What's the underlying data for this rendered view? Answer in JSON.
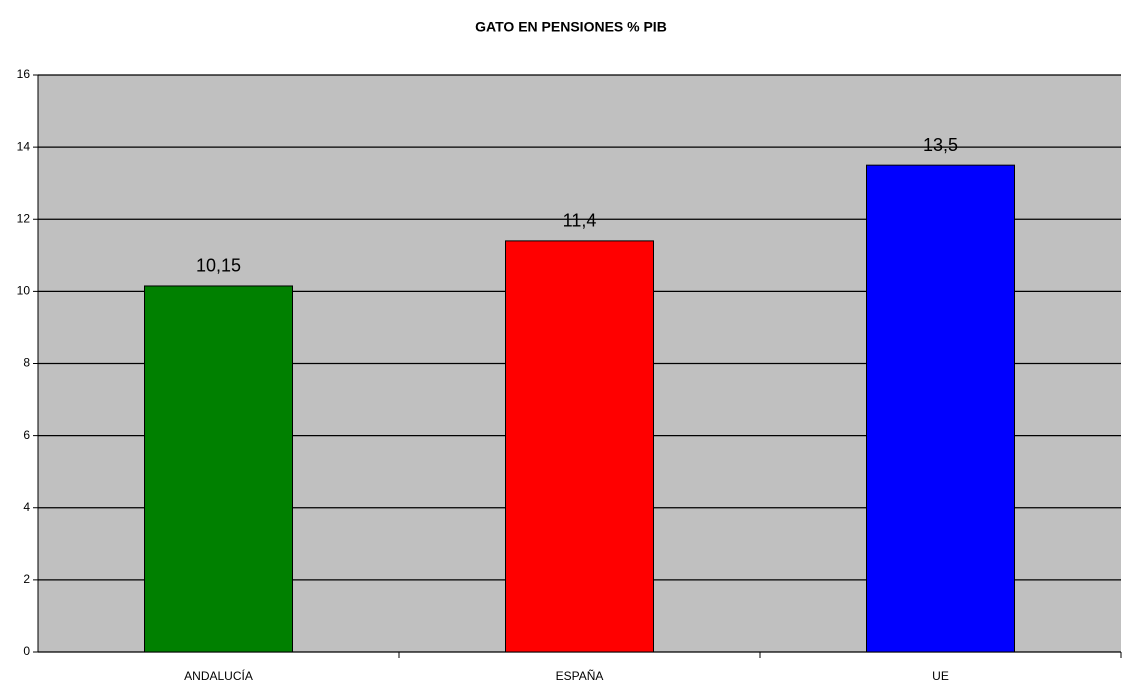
{
  "chart_data": {
    "type": "bar",
    "title": "GATO EN PENSIONES % PIB",
    "categories": [
      "ANDALUCÍA",
      "ESPAÑA",
      "UE"
    ],
    "values": [
      10.15,
      11.4,
      13.5
    ],
    "value_labels": [
      "10,15",
      "11,4",
      "13,5"
    ],
    "colors": [
      "#008000",
      "#ff0000",
      "#0000ff"
    ],
    "ylim": [
      0,
      16
    ],
    "yticks": [
      0,
      2,
      4,
      6,
      8,
      10,
      12,
      14,
      16
    ],
    "grid": true
  }
}
